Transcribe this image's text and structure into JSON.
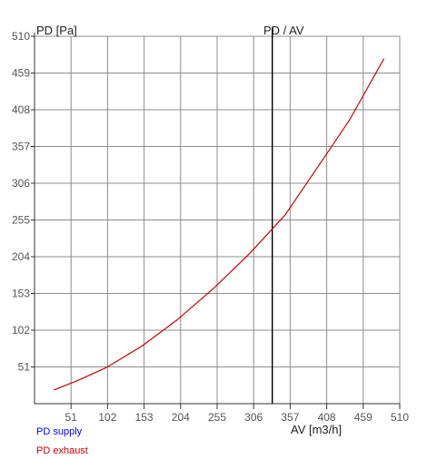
{
  "chart_data": {
    "type": "line",
    "title": "PD / AV",
    "ylabel": "PD [Pa]",
    "xlabel": "AV [m3/h]",
    "xlim": [
      0,
      510
    ],
    "ylim": [
      0,
      510
    ],
    "x_ticks": [
      51,
      102,
      153,
      204,
      255,
      306,
      357,
      408,
      459,
      510
    ],
    "y_ticks": [
      51,
      102,
      153,
      204,
      255,
      306,
      357,
      408,
      459,
      510
    ],
    "grid": true,
    "marker_line": {
      "x": 332
    },
    "legend": [
      {
        "name": "PD supply",
        "color": "#0000ff"
      },
      {
        "name": "PD exhaust",
        "color": "#cc0000"
      }
    ],
    "series": [
      {
        "name": "PD exhaust",
        "color": "#cc0000",
        "x": [
          27,
          60,
          100,
          150,
          200,
          250,
          300,
          350,
          400,
          440,
          488
        ],
        "y": [
          19,
          32,
          50,
          80,
          117,
          160,
          208,
          262,
          335,
          394,
          479
        ]
      }
    ]
  }
}
